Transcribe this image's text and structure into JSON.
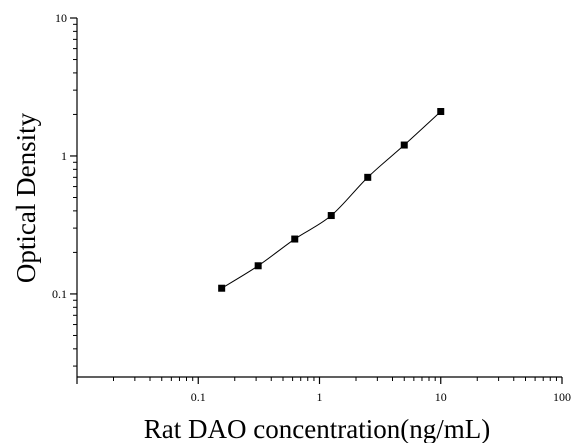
{
  "chart_data": {
    "type": "scatter",
    "title": "",
    "xlabel": "Rat DAO concentration(ng/mL)",
    "ylabel": "Optical Density",
    "x_scale": "log",
    "y_scale": "log",
    "xlim": [
      0.01,
      100
    ],
    "ylim": [
      0.025,
      10
    ],
    "x_tick_labels": [
      "0.1",
      "1",
      "10",
      "100"
    ],
    "y_tick_labels": [
      "0.1",
      "1",
      "10"
    ],
    "grid": false,
    "legend": "none",
    "series": [
      {
        "x": [
          0.156,
          0.312,
          0.625,
          1.25,
          2.5,
          5,
          10
        ],
        "y": [
          0.11,
          0.16,
          0.25,
          0.37,
          0.7,
          1.2,
          2.1
        ]
      }
    ],
    "curve": "smooth fit through points",
    "colors": {
      "marker": "#000000",
      "line": "#000000",
      "background": "#ffffff"
    }
  }
}
